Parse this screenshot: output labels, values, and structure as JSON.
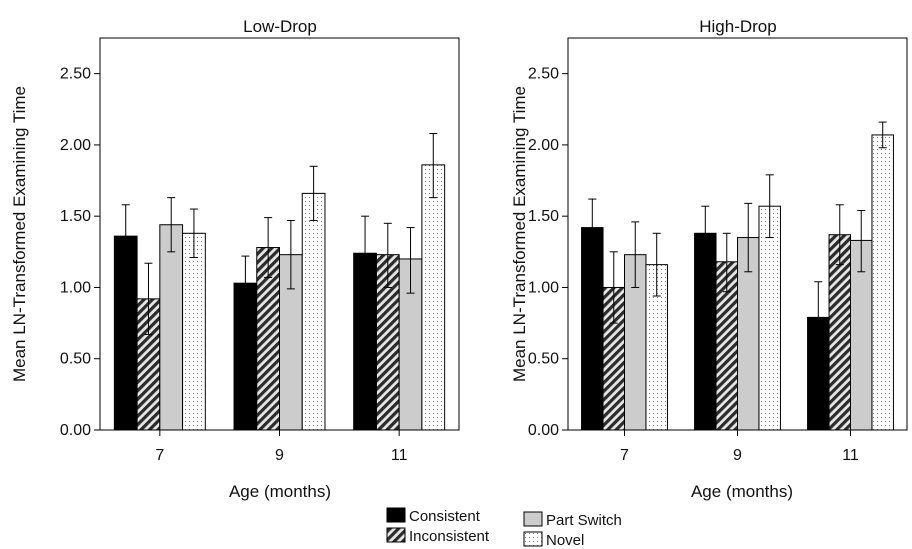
{
  "figure": {
    "legend_title": "",
    "legend_placement": "bottom-center"
  },
  "chart_data": [
    {
      "type": "bar",
      "title": "Low-Drop",
      "xlabel": "Age (months)",
      "ylabel": "Mean LN-Transformed Examining Time",
      "ylim": [
        0,
        2.75
      ],
      "yticks": [
        "0.00",
        "0.50",
        "1.00",
        "1.50",
        "2.00",
        "2.50"
      ],
      "categories": [
        "7",
        "9",
        "11"
      ],
      "grid": false,
      "series": [
        {
          "name": "Consistent",
          "pattern": "solid-black",
          "values": [
            1.36,
            1.03,
            1.24
          ],
          "err_low": [
            1.15,
            0.84,
            0.98
          ],
          "err_high": [
            1.58,
            1.22,
            1.5
          ]
        },
        {
          "name": "Inconsistent",
          "pattern": "hatch",
          "values": [
            0.92,
            1.28,
            1.23
          ],
          "err_low": [
            0.67,
            1.07,
            1.0
          ],
          "err_high": [
            1.17,
            1.49,
            1.45
          ]
        },
        {
          "name": "Part Switch",
          "pattern": "solid-gray",
          "values": [
            1.44,
            1.23,
            1.2
          ],
          "err_low": [
            1.25,
            0.99,
            0.96
          ],
          "err_high": [
            1.63,
            1.47,
            1.42
          ]
        },
        {
          "name": "Novel",
          "pattern": "dots",
          "values": [
            1.38,
            1.66,
            1.86
          ],
          "err_low": [
            1.21,
            1.47,
            1.63
          ],
          "err_high": [
            1.55,
            1.85,
            2.08
          ]
        }
      ]
    },
    {
      "type": "bar",
      "title": "High-Drop",
      "xlabel": "Age (months)",
      "ylabel": "Mean LN-Transformed Examining Time",
      "ylim": [
        0,
        2.75
      ],
      "yticks": [
        "0.00",
        "0.50",
        "1.00",
        "1.50",
        "2.00",
        "2.50"
      ],
      "categories": [
        "7",
        "9",
        "11"
      ],
      "grid": false,
      "series": [
        {
          "name": "Consistent",
          "pattern": "solid-black",
          "values": [
            1.42,
            1.38,
            0.79
          ],
          "err_low": [
            1.22,
            1.18,
            0.54
          ],
          "err_high": [
            1.62,
            1.57,
            1.04
          ]
        },
        {
          "name": "Inconsistent",
          "pattern": "hatch",
          "values": [
            1.0,
            1.18,
            1.37
          ],
          "err_low": [
            0.75,
            0.97,
            1.16
          ],
          "err_high": [
            1.25,
            1.38,
            1.58
          ]
        },
        {
          "name": "Part Switch",
          "pattern": "solid-gray",
          "values": [
            1.23,
            1.35,
            1.33
          ],
          "err_low": [
            1.0,
            1.11,
            1.11
          ],
          "err_high": [
            1.46,
            1.59,
            1.54
          ]
        },
        {
          "name": "Novel",
          "pattern": "dots",
          "values": [
            1.16,
            1.57,
            2.07
          ],
          "err_low": [
            0.94,
            1.35,
            1.98
          ],
          "err_high": [
            1.38,
            1.79,
            2.16
          ]
        }
      ]
    }
  ]
}
